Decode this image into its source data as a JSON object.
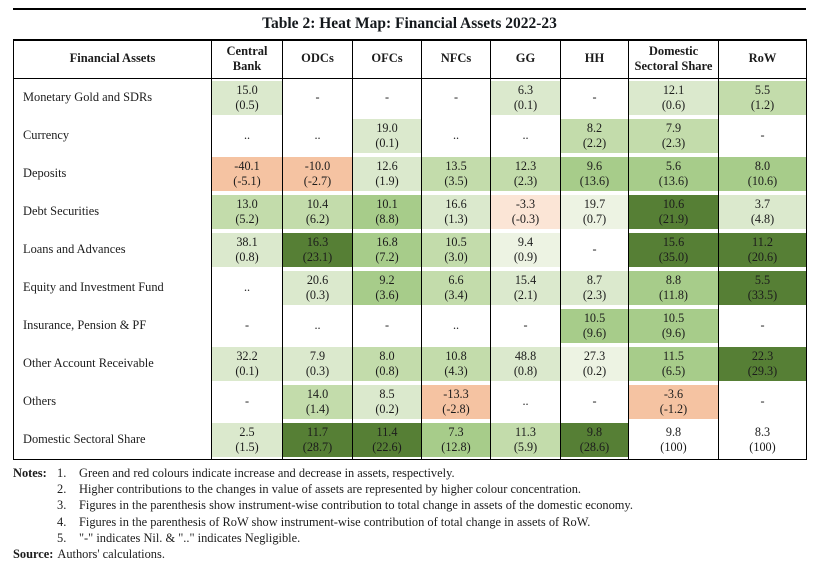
{
  "title": "Table 2: Heat Map: Financial Assets 2022-23",
  "colors": {
    "w": "#ffffff",
    "g1": "#edf3e3",
    "g2": "#dbe9cd",
    "g3": "#c3dcab",
    "g4": "#a7cc8a",
    "g6": "#567f35",
    "r1": "#fbe5d6",
    "r2": "#f5c3a2"
  },
  "table": {
    "columns": [
      "Financial Assets",
      "Central Bank",
      "ODCs",
      "OFCs",
      "NFCs",
      "GG",
      "HH",
      "Domestic Sectoral Share",
      "RoW"
    ],
    "rows": [
      {
        "label": "Monetary Gold and SDRs",
        "cells": [
          {
            "v": "15.0",
            "p": "(0.5)",
            "c": "g2"
          },
          {
            "v": "-",
            "p": "",
            "c": "w"
          },
          {
            "v": "-",
            "p": "",
            "c": "w"
          },
          {
            "v": "-",
            "p": "",
            "c": "w"
          },
          {
            "v": "6.3",
            "p": "(0.1)",
            "c": "g2"
          },
          {
            "v": "-",
            "p": "",
            "c": "w"
          },
          {
            "v": "12.1",
            "p": "(0.6)",
            "c": "g2"
          },
          {
            "v": "5.5",
            "p": "(1.2)",
            "c": "g3"
          }
        ]
      },
      {
        "label": "Currency",
        "cells": [
          {
            "v": "..",
            "p": "",
            "c": "w"
          },
          {
            "v": "..",
            "p": "",
            "c": "w"
          },
          {
            "v": "19.0",
            "p": "(0.1)",
            "c": "g2"
          },
          {
            "v": "..",
            "p": "",
            "c": "w"
          },
          {
            "v": "..",
            "p": "",
            "c": "w"
          },
          {
            "v": "8.2",
            "p": "(2.2)",
            "c": "g3"
          },
          {
            "v": "7.9",
            "p": "(2.3)",
            "c": "g3"
          },
          {
            "v": "-",
            "p": "",
            "c": "w"
          }
        ]
      },
      {
        "label": "Deposits",
        "cells": [
          {
            "v": "-40.1",
            "p": "(-5.1)",
            "c": "r2"
          },
          {
            "v": "-10.0",
            "p": "(-2.7)",
            "c": "r2"
          },
          {
            "v": "12.6",
            "p": "(1.9)",
            "c": "g2"
          },
          {
            "v": "13.5",
            "p": "(3.5)",
            "c": "g3"
          },
          {
            "v": "12.3",
            "p": "(2.3)",
            "c": "g3"
          },
          {
            "v": "9.6",
            "p": "(13.6)",
            "c": "g4"
          },
          {
            "v": "5.6",
            "p": "(13.6)",
            "c": "g4"
          },
          {
            "v": "8.0",
            "p": "(10.6)",
            "c": "g4"
          }
        ]
      },
      {
        "label": "Debt Securities",
        "cells": [
          {
            "v": "13.0",
            "p": "(5.2)",
            "c": "g3"
          },
          {
            "v": "10.4",
            "p": "(6.2)",
            "c": "g3"
          },
          {
            "v": "10.1",
            "p": "(8.8)",
            "c": "g4"
          },
          {
            "v": "16.6",
            "p": "(1.3)",
            "c": "g2"
          },
          {
            "v": "-3.3",
            "p": "(-0.3)",
            "c": "r1"
          },
          {
            "v": "19.7",
            "p": "(0.7)",
            "c": "g1"
          },
          {
            "v": "10.6",
            "p": "(21.9)",
            "c": "g6"
          },
          {
            "v": "3.7",
            "p": "(4.8)",
            "c": "g2"
          }
        ]
      },
      {
        "label": "Loans and Advances",
        "cells": [
          {
            "v": "38.1",
            "p": "(0.8)",
            "c": "g2"
          },
          {
            "v": "16.3",
            "p": "(23.1)",
            "c": "g6"
          },
          {
            "v": "16.8",
            "p": "(7.2)",
            "c": "g4"
          },
          {
            "v": "10.5",
            "p": "(3.0)",
            "c": "g3"
          },
          {
            "v": "9.4",
            "p": "(0.9)",
            "c": "g1"
          },
          {
            "v": "-",
            "p": "",
            "c": "w"
          },
          {
            "v": "15.6",
            "p": "(35.0)",
            "c": "g6"
          },
          {
            "v": "11.2",
            "p": "(20.6)",
            "c": "g6"
          }
        ]
      },
      {
        "label": "Equity and Investment Fund",
        "cells": [
          {
            "v": "..",
            "p": "",
            "c": "w"
          },
          {
            "v": "20.6",
            "p": "(0.3)",
            "c": "g2"
          },
          {
            "v": "9.2",
            "p": "(3.6)",
            "c": "g4"
          },
          {
            "v": "6.6",
            "p": "(3.4)",
            "c": "g3"
          },
          {
            "v": "15.4",
            "p": "(2.1)",
            "c": "g2"
          },
          {
            "v": "8.7",
            "p": "(2.3)",
            "c": "g2"
          },
          {
            "v": "8.8",
            "p": "(11.8)",
            "c": "g4"
          },
          {
            "v": "5.5",
            "p": "(33.5)",
            "c": "g6"
          }
        ]
      },
      {
        "label": "Insurance, Pension & PF",
        "cells": [
          {
            "v": "-",
            "p": "",
            "c": "w"
          },
          {
            "v": "..",
            "p": "",
            "c": "w"
          },
          {
            "v": "-",
            "p": "",
            "c": "w"
          },
          {
            "v": "..",
            "p": "",
            "c": "w"
          },
          {
            "v": "-",
            "p": "",
            "c": "w"
          },
          {
            "v": "10.5",
            "p": "(9.6)",
            "c": "g4"
          },
          {
            "v": "10.5",
            "p": "(9.6)",
            "c": "g4"
          },
          {
            "v": "-",
            "p": "",
            "c": "w"
          }
        ]
      },
      {
        "label": "Other Account Receivable",
        "cells": [
          {
            "v": "32.2",
            "p": "(0.1)",
            "c": "g2"
          },
          {
            "v": "7.9",
            "p": "(0.3)",
            "c": "g2"
          },
          {
            "v": "8.0",
            "p": "(0.8)",
            "c": "g3"
          },
          {
            "v": "10.8",
            "p": "(4.3)",
            "c": "g3"
          },
          {
            "v": "48.8",
            "p": "(0.8)",
            "c": "g2"
          },
          {
            "v": "27.3",
            "p": "(0.2)",
            "c": "g1"
          },
          {
            "v": "11.5",
            "p": "(6.5)",
            "c": "g4"
          },
          {
            "v": "22.3",
            "p": "(29.3)",
            "c": "g6"
          }
        ]
      },
      {
        "label": "Others",
        "cells": [
          {
            "v": "-",
            "p": "",
            "c": "w"
          },
          {
            "v": "14.0",
            "p": "(1.4)",
            "c": "g3"
          },
          {
            "v": "8.5",
            "p": "(0.2)",
            "c": "g2"
          },
          {
            "v": "-13.3",
            "p": "(-2.8)",
            "c": "r2"
          },
          {
            "v": "..",
            "p": "",
            "c": "w"
          },
          {
            "v": "-",
            "p": "",
            "c": "w"
          },
          {
            "v": "-3.6",
            "p": "(-1.2)",
            "c": "r2"
          },
          {
            "v": "-",
            "p": "",
            "c": "w"
          }
        ]
      },
      {
        "label": "Domestic Sectoral Share",
        "cells": [
          {
            "v": "2.5",
            "p": "(1.5)",
            "c": "g2"
          },
          {
            "v": "11.7",
            "p": "(28.7)",
            "c": "g6"
          },
          {
            "v": "11.4",
            "p": "(22.6)",
            "c": "g6"
          },
          {
            "v": "7.3",
            "p": "(12.8)",
            "c": "g4"
          },
          {
            "v": "11.3",
            "p": "(5.9)",
            "c": "g3"
          },
          {
            "v": "9.8",
            "p": "(28.6)",
            "c": "g6"
          },
          {
            "v": "9.8",
            "p": "(100)",
            "c": "w"
          },
          {
            "v": "8.3",
            "p": "(100)",
            "c": "w"
          }
        ]
      }
    ]
  },
  "notes": {
    "label": "Notes:",
    "items": [
      {
        "n": "1.",
        "text": "Green and red colours indicate increase and decrease in assets, respectively."
      },
      {
        "n": "2.",
        "text": "Higher contributions to the changes in value of assets are represented by higher colour concentration."
      },
      {
        "n": "3.",
        "text": "Figures in the parenthesis show instrument-wise contribution to total change in assets of the domestic economy."
      },
      {
        "n": "4.",
        "text": "Figures in the parenthesis of RoW show instrument-wise contribution of total change in assets of RoW."
      },
      {
        "n": "5.",
        "text": "\"-\" indicates Nil. & \"..\" indicates Negligible."
      }
    ],
    "source_label": "Source:",
    "source_text": "Authors' calculations."
  },
  "chart_data": {
    "type": "heatmap",
    "title": "Table 2: Heat Map: Financial Assets 2022-23",
    "columns": [
      "Central Bank",
      "ODCs",
      "OFCs",
      "NFCs",
      "GG",
      "HH",
      "Domestic Sectoral Share",
      "RoW"
    ],
    "rows": [
      "Monetary Gold and SDRs",
      "Currency",
      "Deposits",
      "Debt Securities",
      "Loans and Advances",
      "Equity and Investment Fund",
      "Insurance, Pension & PF",
      "Other Account Receivable",
      "Others",
      "Domestic Sectoral Share"
    ],
    "values": [
      [
        15.0,
        "-",
        "-",
        "-",
        6.3,
        "-",
        12.1,
        5.5
      ],
      [
        "..",
        "..",
        19.0,
        "..",
        "..",
        8.2,
        7.9,
        "-"
      ],
      [
        -40.1,
        -10.0,
        12.6,
        13.5,
        12.3,
        9.6,
        5.6,
        8.0
      ],
      [
        13.0,
        10.4,
        10.1,
        16.6,
        -3.3,
        19.7,
        10.6,
        3.7
      ],
      [
        38.1,
        16.3,
        16.8,
        10.5,
        9.4,
        "-",
        15.6,
        11.2
      ],
      [
        "..",
        20.6,
        9.2,
        6.6,
        15.4,
        8.7,
        8.8,
        5.5
      ],
      [
        "-",
        "..",
        "-",
        "..",
        "-",
        10.5,
        10.5,
        "-"
      ],
      [
        32.2,
        7.9,
        8.0,
        10.8,
        48.8,
        27.3,
        11.5,
        22.3
      ],
      [
        "-",
        14.0,
        8.5,
        -13.3,
        "..",
        "-",
        -3.6,
        "-"
      ],
      [
        2.5,
        11.7,
        11.4,
        7.3,
        11.3,
        9.8,
        9.8,
        8.3
      ]
    ],
    "contributions": [
      [
        0.5,
        null,
        null,
        null,
        0.1,
        null,
        0.6,
        1.2
      ],
      [
        null,
        null,
        0.1,
        null,
        null,
        2.2,
        2.3,
        null
      ],
      [
        -5.1,
        -2.7,
        1.9,
        3.5,
        2.3,
        13.6,
        13.6,
        10.6
      ],
      [
        5.2,
        6.2,
        8.8,
        1.3,
        -0.3,
        0.7,
        21.9,
        4.8
      ],
      [
        0.8,
        23.1,
        7.2,
        3.0,
        0.9,
        null,
        35.0,
        20.6
      ],
      [
        null,
        0.3,
        3.6,
        3.4,
        2.1,
        2.3,
        11.8,
        33.5
      ],
      [
        null,
        null,
        null,
        null,
        null,
        9.6,
        9.6,
        null
      ],
      [
        0.1,
        0.3,
        0.8,
        4.3,
        0.8,
        0.2,
        6.5,
        29.3
      ],
      [
        null,
        1.4,
        0.2,
        -2.8,
        null,
        null,
        -1.2,
        null
      ],
      [
        1.5,
        28.7,
        22.6,
        12.8,
        5.9,
        28.6,
        100,
        100
      ]
    ]
  }
}
